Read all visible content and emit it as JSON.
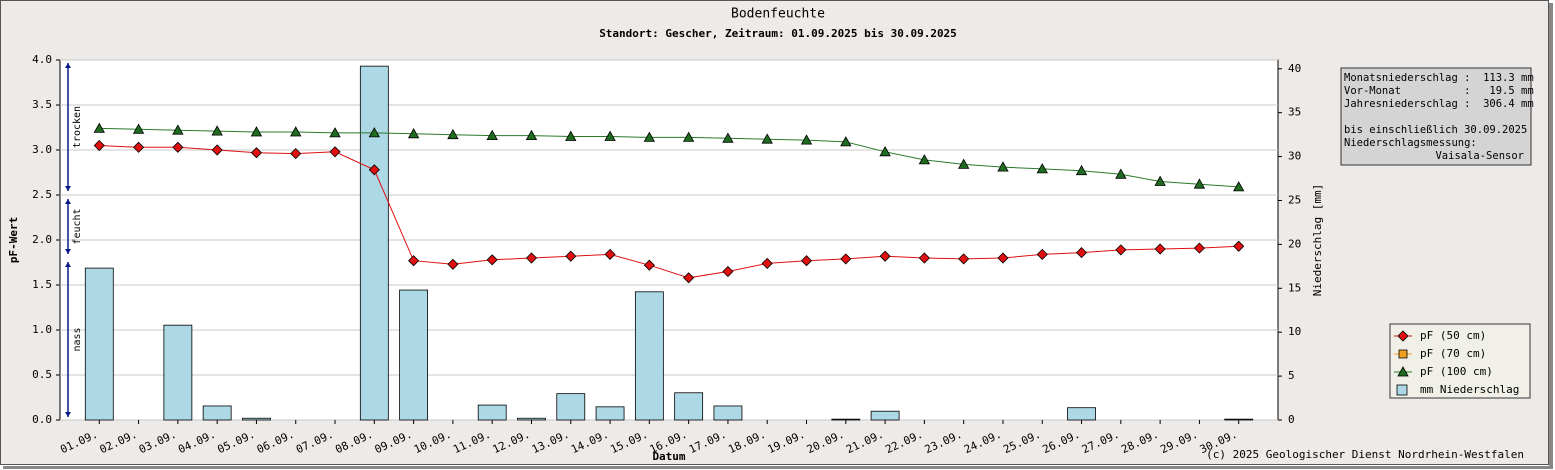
{
  "chart_data": {
    "type": "line",
    "title": "Bodenfeuchte",
    "subtitle": "Standort: Gescher, Zeitraum: 01.09.2025 bis 30.09.2025",
    "x_label": "Datum",
    "y_label": "pF-Wert",
    "y2_label": "Niederschlag [mm]",
    "credit": "(c) 2025 Geologischer Dienst Nordrhein-Westfalen",
    "categories": [
      "01.09.",
      "02.09.",
      "03.09.",
      "04.09.",
      "05.09.",
      "06.09.",
      "07.09.",
      "08.09.",
      "09.09.",
      "10.09.",
      "11.09.",
      "12.09.",
      "13.09.",
      "14.09.",
      "15.09.",
      "16.09.",
      "17.09.",
      "18.09.",
      "19.09.",
      "20.09.",
      "21.09.",
      "22.09.",
      "23.09.",
      "24.09.",
      "25.09.",
      "26.09.",
      "27.09.",
      "28.09.",
      "29.09.",
      "30.09."
    ],
    "ylim": [
      0,
      4
    ],
    "yticks": [
      {
        "value": 0,
        "label": "0.0"
      },
      {
        "value": 0.5,
        "label": "0.5"
      },
      {
        "value": 1,
        "label": "1.0"
      },
      {
        "value": 1.5,
        "label": "1.5"
      },
      {
        "value": 2,
        "label": "2.0"
      },
      {
        "value": 2.5,
        "label": "2.5"
      },
      {
        "value": 3,
        "label": "3.0"
      },
      {
        "value": 3.5,
        "label": "3.5"
      },
      {
        "value": 4,
        "label": "4.0"
      }
    ],
    "y2lim": [
      0,
      41
    ],
    "y2ticks": [
      0,
      5,
      10,
      15,
      20,
      25,
      30,
      35,
      40
    ],
    "grid": true,
    "zones": [
      {
        "label": "trocken",
        "range": [
          2.5,
          4
        ]
      },
      {
        "label": "feucht",
        "range": [
          1.8,
          2.5
        ]
      },
      {
        "label": "nass",
        "range": [
          0,
          1.8
        ]
      }
    ],
    "series": [
      {
        "name": "mm  Niederschlag",
        "type": "bar",
        "axis": "y2",
        "color": "#add8e6",
        "values": [
          17.3,
          0,
          10.8,
          1.6,
          0.2,
          0,
          0,
          40.3,
          14.8,
          0,
          1.7,
          0.2,
          3.0,
          1.5,
          14.6,
          3.1,
          1.6,
          0,
          0,
          0.1,
          1.0,
          0,
          0,
          0,
          0,
          1.4,
          0,
          0,
          0,
          0.1
        ]
      },
      {
        "name": "pF (50 cm)",
        "type": "line",
        "marker": "diamond",
        "color": "#e01010",
        "values": [
          3.05,
          3.03,
          3.03,
          3.0,
          2.97,
          2.96,
          2.98,
          2.78,
          1.77,
          1.73,
          1.78,
          1.8,
          1.82,
          1.84,
          1.72,
          1.58,
          1.65,
          1.74,
          1.77,
          1.79,
          1.82,
          1.8,
          1.79,
          1.8,
          1.84,
          1.86,
          1.89,
          1.9,
          1.91,
          1.93
        ]
      },
      {
        "name": "pF (70 cm)",
        "type": "line",
        "marker": "square",
        "color": "#f0a020",
        "values": [
          null,
          null,
          null,
          null,
          null,
          null,
          null,
          null,
          null,
          null,
          null,
          null,
          null,
          null,
          null,
          null,
          null,
          null,
          null,
          null,
          null,
          null,
          null,
          null,
          null,
          null,
          null,
          null,
          null,
          null
        ]
      },
      {
        "name": "pF (100 cm)",
        "type": "line",
        "marker": "triangle",
        "color": "#1f6b1f",
        "values": [
          3.24,
          3.23,
          3.22,
          3.21,
          3.2,
          3.2,
          3.19,
          3.19,
          3.18,
          3.17,
          3.16,
          3.16,
          3.15,
          3.15,
          3.14,
          3.14,
          3.13,
          3.12,
          3.11,
          3.09,
          2.98,
          2.89,
          2.84,
          2.81,
          2.79,
          2.77,
          2.73,
          2.65,
          2.62,
          2.59
        ]
      }
    ],
    "legend_order": [
      1,
      2,
      3,
      0
    ],
    "info_box": [
      "Monatsniederschlag :  113.3 mm",
      "Vor-Monat          :   19.5 mm",
      "Jahresniederschlag :  306.4 mm",
      "",
      "bis einschließlich 30.09.2025",
      "Niederschlagsmessung:",
      "Vaisala-Sensor"
    ]
  }
}
